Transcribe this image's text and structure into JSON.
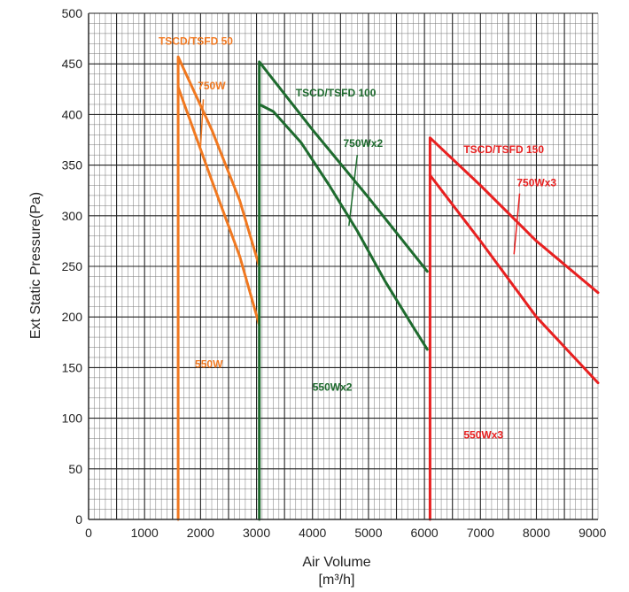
{
  "chart_data": {
    "type": "line",
    "xlabel": "Air Volume",
    "xlabel_unit": "[m³/h]",
    "ylabel": "Ext Static Pressure(Pa)",
    "xlim": [
      0,
      9100
    ],
    "ylim": [
      0,
      500
    ],
    "x_ticks": [
      "0",
      "1000",
      "2000",
      "3000",
      "4000",
      "5000",
      "6000",
      "7000",
      "8000",
      "9000"
    ],
    "y_ticks": [
      "0",
      "50",
      "100",
      "150",
      "200",
      "250",
      "300",
      "350",
      "400",
      "450",
      "500"
    ],
    "grid": true,
    "colors": {
      "tscd50": "#f07820",
      "tscd100": "#1e6b2e",
      "tscd150": "#e82020"
    },
    "series": [
      {
        "group": "tscd50",
        "x": [
          1600,
          1600,
          2200,
          2700,
          3050
        ],
        "y": [
          0,
          457,
          385,
          315,
          250
        ]
      },
      {
        "group": "tscd50",
        "x": [
          1600,
          2200,
          2700,
          3050
        ],
        "y": [
          427,
          335,
          260,
          192
        ]
      },
      {
        "group": "tscd100",
        "x": [
          3050,
          3050,
          4000,
          5000,
          6050
        ],
        "y": [
          0,
          452,
          385,
          318,
          245
        ]
      },
      {
        "group": "tscd100",
        "x": [
          3050,
          3300,
          3800,
          4300,
          4800,
          5300,
          5800,
          6050
        ],
        "y": [
          410,
          403,
          372,
          330,
          285,
          235,
          190,
          168
        ]
      },
      {
        "group": "tscd150",
        "x": [
          6100,
          6100,
          7000,
          8000,
          9100
        ],
        "y": [
          0,
          377,
          330,
          275,
          224
        ]
      },
      {
        "group": "tscd150",
        "x": [
          6100,
          7000,
          8000,
          9100
        ],
        "y": [
          340,
          275,
          200,
          135
        ]
      }
    ],
    "annotations": [
      {
        "text": "TSCD/TSFD 50",
        "group": "tscd50",
        "x": 1250,
        "y": 469
      },
      {
        "text": "750W",
        "group": "tscd50",
        "x": 1950,
        "y": 425
      },
      {
        "text": "550W",
        "group": "tscd50",
        "x": 1900,
        "y": 150
      },
      {
        "text": "TSCD/TSFD 100",
        "group": "tscd100",
        "x": 3700,
        "y": 418
      },
      {
        "text": "750Wx2",
        "group": "tscd100",
        "x": 4550,
        "y": 368
      },
      {
        "text": "550Wx2",
        "group": "tscd100",
        "x": 4000,
        "y": 127
      },
      {
        "text": "TSCD/TSFD 150",
        "group": "tscd150",
        "x": 6700,
        "y": 362
      },
      {
        "text": "750Wx3",
        "group": "tscd150",
        "x": 7650,
        "y": 329
      },
      {
        "text": "550Wx3",
        "group": "tscd150",
        "x": 6700,
        "y": 80
      }
    ],
    "leaders": [
      {
        "group": "tscd50",
        "x": [
          2050,
          2000
        ],
        "y": [
          415,
          368
        ]
      },
      {
        "group": "tscd100",
        "x": [
          4800,
          4650
        ],
        "y": [
          360,
          290
        ]
      },
      {
        "group": "tscd150",
        "x": [
          7700,
          7600
        ],
        "y": [
          322,
          262
        ]
      }
    ]
  }
}
